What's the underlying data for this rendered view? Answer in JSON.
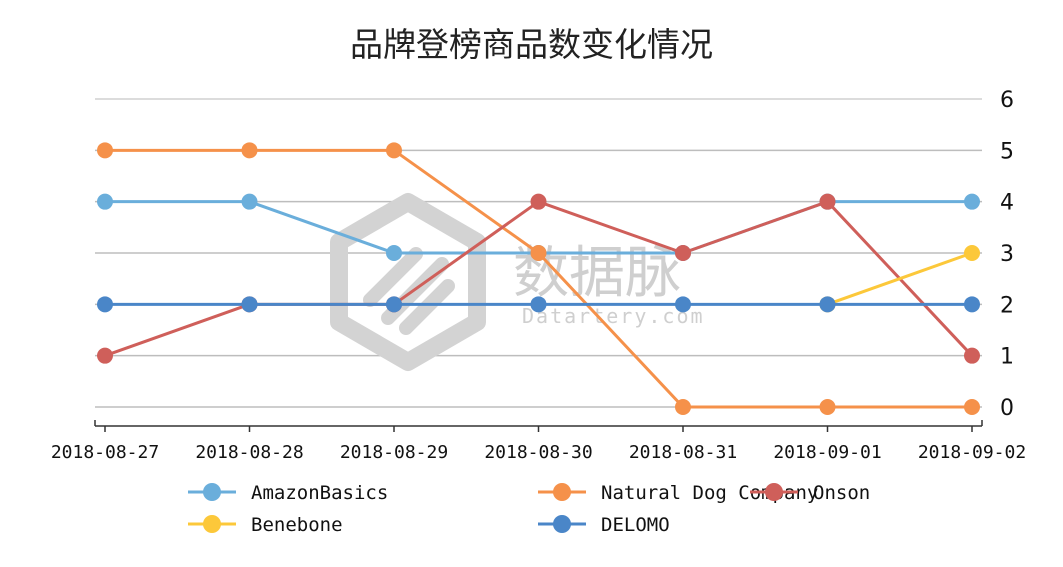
{
  "chart_data": {
    "type": "line",
    "title": "品牌登榜商品数变化情况",
    "x": [
      "2018-08-27",
      "2018-08-28",
      "2018-08-29",
      "2018-08-30",
      "2018-08-31",
      "2018-09-01",
      "2018-09-02"
    ],
    "ylim": [
      0,
      6
    ],
    "yticks": [
      0,
      1,
      2,
      3,
      4,
      5,
      6
    ],
    "grid": true,
    "yaxis_position": "right",
    "legend_position": "bottom",
    "series": [
      {
        "name": "AmazonBasics",
        "color": "#6aaedb",
        "values": [
          4,
          4,
          3,
          3,
          3,
          4,
          4
        ]
      },
      {
        "name": "Natural Dog Company",
        "color": "#f5914a",
        "values": [
          5,
          5,
          5,
          3,
          0,
          0,
          0
        ]
      },
      {
        "name": "Onson",
        "color": "#cf5f5a",
        "values": [
          1,
          2,
          2,
          4,
          3,
          4,
          1
        ]
      },
      {
        "name": "Benebone",
        "color": "#fcc83a",
        "values": [
          null,
          null,
          null,
          null,
          null,
          2,
          3
        ]
      },
      {
        "name": "DELOMO",
        "color": "#4a86c8",
        "values": [
          2,
          2,
          2,
          2,
          2,
          2,
          2
        ]
      }
    ]
  },
  "watermark": {
    "main": "数据脉",
    "sub": "Datartery.com"
  }
}
